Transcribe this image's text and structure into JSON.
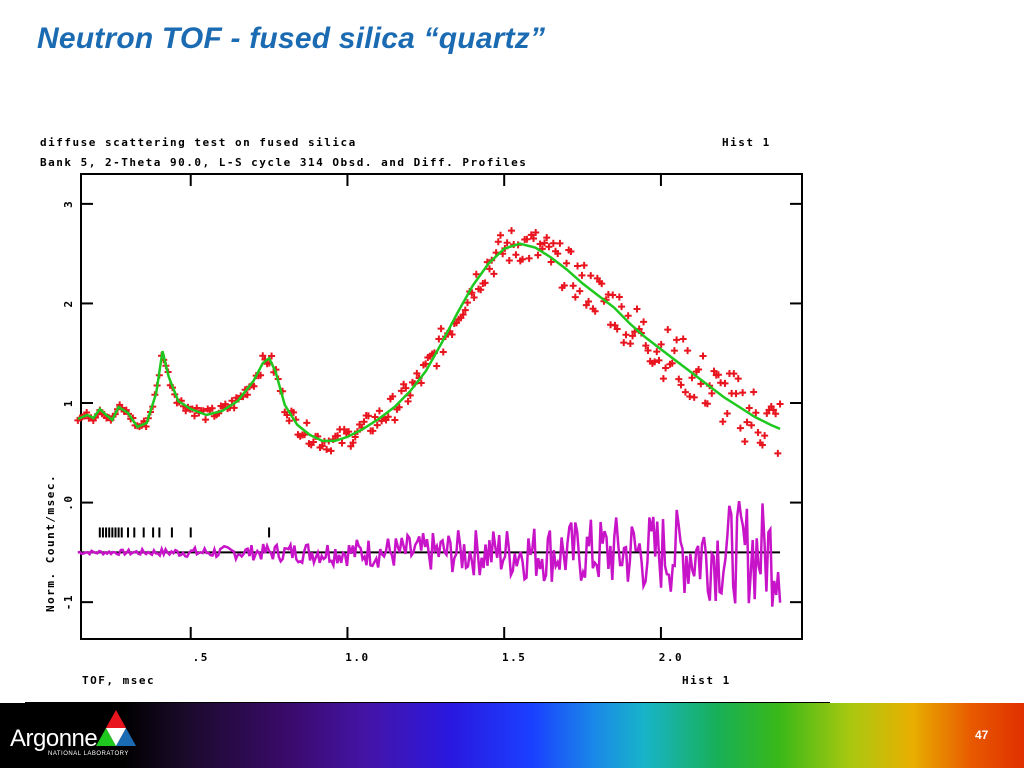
{
  "slide": {
    "title": "Neutron TOF - fused silica “quartz”",
    "page_number": "47"
  },
  "logo": {
    "name": "Argonne",
    "subtitle": "NATIONAL LABORATORY"
  },
  "chart_data": {
    "type": "line",
    "header_line1": "diffuse scattering test on fused silica",
    "header_line1_right": "Hist   1",
    "header_line2": "Bank  5, 2-Theta    90.0, L-S cycle   314 Obsd. and Diff. Profiles",
    "xlabel": "TOF, msec",
    "ylabel": "Norm. Count/msec.",
    "bottom_right": "Hist   1",
    "xlim": [
      0.15,
      2.45
    ],
    "ylim": [
      -1.37,
      3.3
    ],
    "x_ticks": [
      0.5,
      1.0,
      1.5,
      2.0
    ],
    "x_tick_labels": [
      ".5",
      "1.0",
      "1.5",
      "2.0"
    ],
    "y_ticks": [
      -1,
      0,
      1,
      2,
      3
    ],
    "y_tick_labels": [
      "-1",
      ".0",
      "1",
      "2",
      "3"
    ],
    "colors": {
      "observed": "#e8141e",
      "calculated": "#1ec81e",
      "difference": "#c814c8",
      "reflection_ticks": "#000000",
      "zero_line": "#000000"
    },
    "calculated": {
      "x": [
        0.14,
        0.17,
        0.19,
        0.21,
        0.23,
        0.25,
        0.27,
        0.3,
        0.33,
        0.36,
        0.39,
        0.41,
        0.43,
        0.46,
        0.5,
        0.55,
        0.6,
        0.65,
        0.7,
        0.73,
        0.75,
        0.77,
        0.8,
        0.84,
        0.88,
        0.92,
        0.96,
        1.0,
        1.05,
        1.1,
        1.15,
        1.2,
        1.25,
        1.3,
        1.35,
        1.4,
        1.45,
        1.5,
        1.55,
        1.6,
        1.65,
        1.7,
        1.75,
        1.8,
        1.85,
        1.9,
        1.95,
        2.0,
        2.05,
        2.1,
        2.15,
        2.2,
        2.25,
        2.3,
        2.35,
        2.38
      ],
      "y": [
        0.84,
        0.88,
        0.85,
        0.94,
        0.88,
        0.83,
        0.96,
        0.9,
        0.76,
        0.8,
        1.1,
        1.52,
        1.26,
        1.02,
        0.94,
        0.88,
        0.92,
        1.02,
        1.22,
        1.4,
        1.45,
        1.32,
        0.98,
        0.78,
        0.68,
        0.62,
        0.62,
        0.66,
        0.74,
        0.84,
        0.96,
        1.12,
        1.32,
        1.6,
        1.9,
        2.18,
        2.4,
        2.55,
        2.6,
        2.56,
        2.46,
        2.34,
        2.2,
        2.08,
        1.96,
        1.8,
        1.66,
        1.54,
        1.42,
        1.3,
        1.18,
        1.06,
        0.96,
        0.86,
        0.78,
        0.74
      ]
    },
    "difference": {
      "x": [
        0.14,
        0.2,
        0.26,
        0.32,
        0.38,
        0.44,
        0.5,
        0.56,
        0.62,
        0.68,
        0.72,
        0.76,
        0.8,
        0.86,
        0.92,
        0.98,
        1.04,
        1.1,
        1.16,
        1.22,
        1.28,
        1.34,
        1.4,
        1.46,
        1.52,
        1.58,
        1.64,
        1.7,
        1.76,
        1.82,
        1.88,
        1.94,
        2.0,
        2.06,
        2.12,
        2.18,
        2.24,
        2.3,
        2.36
      ],
      "y": [
        -0.5,
        -0.47,
        -0.51,
        -0.49,
        -0.52,
        -0.48,
        -0.5,
        -0.46,
        -0.54,
        -0.42,
        -0.58,
        -0.4,
        -0.55,
        -0.45,
        -0.52,
        -0.44,
        -0.58,
        -0.38,
        -0.6,
        -0.36,
        -0.65,
        -0.3,
        -0.7,
        -0.25,
        -0.75,
        -0.2,
        -0.8,
        -0.15,
        -0.85,
        -0.1,
        -0.9,
        -0.05,
        -0.95,
        0.1,
        -0.98,
        0.15,
        -0.9,
        0.05,
        -0.8
      ]
    },
    "difference_baseline": -0.5,
    "reflection_ticks": {
      "y": -0.3,
      "x": [
        0.21,
        0.22,
        0.23,
        0.24,
        0.25,
        0.26,
        0.27,
        0.28,
        0.3,
        0.32,
        0.35,
        0.38,
        0.4,
        0.44,
        0.5,
        0.75
      ]
    },
    "legend": "none",
    "grid": false
  }
}
